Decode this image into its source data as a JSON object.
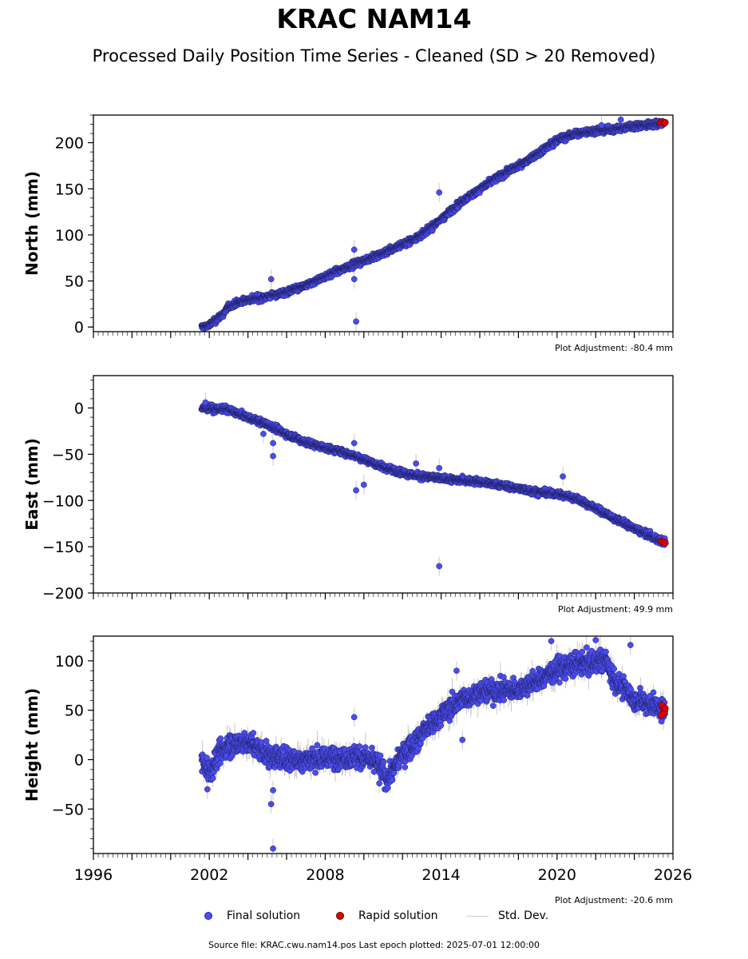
{
  "title": "KRAC NAM14",
  "subtitle": "Processed Daily Position Time Series - Cleaned (SD > 20 Removed)",
  "colors": {
    "final_fill": "#4a4cf0",
    "final_edge": "#1e1e5a",
    "rapid_fill": "#e00000",
    "stddev": "#c8c8c8"
  },
  "legend": {
    "final": "Final solution",
    "rapid": "Rapid solution",
    "stddev": "Std. Dev."
  },
  "footer": "Source file: KRAC.cwu.nam14.pos  Last epoch plotted: 2025-07-01 12:00:00",
  "chart_data": [
    {
      "type": "scatter",
      "ylabel": "North (mm)",
      "adjustment": "Plot Adjustment: -80.4 mm",
      "xlim": [
        1996,
        2026
      ],
      "ylim": [
        -5,
        230
      ],
      "yticks": [
        0,
        50,
        100,
        150,
        200
      ],
      "xticks": [
        1996,
        2002,
        2008,
        2014,
        2020,
        2026
      ],
      "show_xtick_labels": false,
      "trend": [
        [
          2001.6,
          0
        ],
        [
          2002.0,
          2
        ],
        [
          2002.7,
          14
        ],
        [
          2003.0,
          22
        ],
        [
          2003.8,
          29
        ],
        [
          2005.0,
          33
        ],
        [
          2006.0,
          38
        ],
        [
          2007.0,
          45
        ],
        [
          2008.0,
          55
        ],
        [
          2009.0,
          64
        ],
        [
          2010.0,
          72
        ],
        [
          2011.0,
          80
        ],
        [
          2012.0,
          90
        ],
        [
          2013.0,
          100
        ],
        [
          2014.0,
          117
        ],
        [
          2015.0,
          135
        ],
        [
          2016.0,
          150
        ],
        [
          2017.0,
          163
        ],
        [
          2018.0,
          175
        ],
        [
          2019.0,
          188
        ],
        [
          2020.0,
          203
        ],
        [
          2021.0,
          210
        ],
        [
          2022.0,
          213
        ],
        [
          2023.0,
          215
        ],
        [
          2024.0,
          218
        ],
        [
          2025.0,
          220
        ],
        [
          2025.5,
          221
        ]
      ],
      "noise": 2.5,
      "outliers": [
        [
          2005.2,
          52
        ],
        [
          2009.5,
          52
        ],
        [
          2009.6,
          6
        ],
        [
          2009.5,
          84
        ],
        [
          2013.9,
          146
        ],
        [
          2022.3,
          219
        ],
        [
          2023.3,
          225
        ]
      ],
      "rapid": [
        [
          2025.35,
          222
        ],
        [
          2025.45,
          223
        ],
        [
          2025.55,
          221
        ],
        [
          2025.6,
          222
        ]
      ]
    },
    {
      "type": "scatter",
      "ylabel": "East (mm)",
      "adjustment": "Plot Adjustment: 49.9 mm",
      "xlim": [
        1996,
        2026
      ],
      "ylim": [
        -200,
        35
      ],
      "yticks": [
        -200,
        -150,
        -100,
        -50,
        0
      ],
      "xticks": [
        1996,
        2002,
        2008,
        2014,
        2020,
        2026
      ],
      "show_xtick_labels": false,
      "trend": [
        [
          2001.6,
          0
        ],
        [
          2002.5,
          -1
        ],
        [
          2003.0,
          -2
        ],
        [
          2004.0,
          -10
        ],
        [
          2005.0,
          -18
        ],
        [
          2006.0,
          -28
        ],
        [
          2007.0,
          -37
        ],
        [
          2008.0,
          -43
        ],
        [
          2009.0,
          -48
        ],
        [
          2010.0,
          -55
        ],
        [
          2011.0,
          -64
        ],
        [
          2012.0,
          -70
        ],
        [
          2013.0,
          -74
        ],
        [
          2014.0,
          -76
        ],
        [
          2015.0,
          -78
        ],
        [
          2016.0,
          -80
        ],
        [
          2017.0,
          -83
        ],
        [
          2018.0,
          -87
        ],
        [
          2019.0,
          -91
        ],
        [
          2020.0,
          -93
        ],
        [
          2021.0,
          -98
        ],
        [
          2022.0,
          -108
        ],
        [
          2023.0,
          -120
        ],
        [
          2024.0,
          -130
        ],
        [
          2025.0,
          -140
        ],
        [
          2025.6,
          -145
        ]
      ],
      "noise": 2.5,
      "outliers": [
        [
          2001.8,
          6
        ],
        [
          2004.8,
          -28
        ],
        [
          2005.3,
          -38
        ],
        [
          2005.3,
          -52
        ],
        [
          2009.5,
          -38
        ],
        [
          2009.6,
          -89
        ],
        [
          2010.0,
          -83
        ],
        [
          2012.7,
          -60
        ],
        [
          2013.9,
          -65
        ],
        [
          2013.9,
          -171
        ],
        [
          2020.3,
          -74
        ]
      ],
      "rapid": [
        [
          2025.4,
          -144
        ],
        [
          2025.5,
          -145
        ],
        [
          2025.6,
          -146
        ]
      ]
    },
    {
      "type": "scatter",
      "ylabel": "Height (mm)",
      "adjustment": "Plot Adjustment: -20.6 mm",
      "xlim": [
        1996,
        2026
      ],
      "ylim": [
        -95,
        125
      ],
      "yticks": [
        -50,
        0,
        50,
        100
      ],
      "xticks": [
        1996,
        2002,
        2008,
        2014,
        2020,
        2026
      ],
      "show_xtick_labels": true,
      "trend": [
        [
          2001.6,
          0
        ],
        [
          2002.0,
          -12
        ],
        [
          2002.5,
          5
        ],
        [
          2003.0,
          15
        ],
        [
          2004.0,
          18
        ],
        [
          2005.0,
          5
        ],
        [
          2006.0,
          0
        ],
        [
          2007.0,
          0
        ],
        [
          2008.0,
          2
        ],
        [
          2009.0,
          3
        ],
        [
          2010.0,
          2
        ],
        [
          2010.8,
          -5
        ],
        [
          2011.2,
          -20
        ],
        [
          2012.0,
          5
        ],
        [
          2013.0,
          25
        ],
        [
          2014.0,
          45
        ],
        [
          2015.0,
          60
        ],
        [
          2016.0,
          68
        ],
        [
          2017.0,
          70
        ],
        [
          2018.0,
          72
        ],
        [
          2019.0,
          80
        ],
        [
          2020.0,
          92
        ],
        [
          2021.0,
          97
        ],
        [
          2022.0,
          98
        ],
        [
          2022.5,
          100
        ],
        [
          2023.0,
          80
        ],
        [
          2023.5,
          72
        ],
        [
          2024.0,
          60
        ],
        [
          2025.0,
          55
        ],
        [
          2025.6,
          50
        ]
      ],
      "noise": 8,
      "outliers": [
        [
          2001.9,
          -30
        ],
        [
          2005.2,
          -45
        ],
        [
          2005.3,
          -31
        ],
        [
          2005.3,
          -90
        ],
        [
          2009.5,
          43
        ],
        [
          2010.8,
          -24
        ],
        [
          2015.1,
          20
        ],
        [
          2014.8,
          90
        ],
        [
          2022.0,
          121
        ],
        [
          2023.8,
          116
        ],
        [
          2021.3,
          109
        ],
        [
          2019.7,
          120
        ]
      ],
      "rapid": [
        [
          2025.4,
          45
        ],
        [
          2025.45,
          55
        ],
        [
          2025.5,
          50
        ],
        [
          2025.55,
          48
        ],
        [
          2025.6,
          52
        ]
      ]
    }
  ]
}
